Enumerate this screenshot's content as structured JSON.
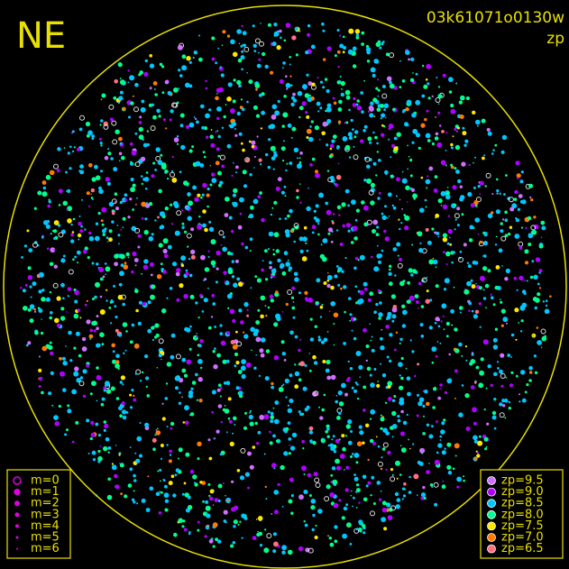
{
  "direction_label": "NE",
  "frame_id": "03k61071o0130w",
  "color_key_label": "zp",
  "border_color": "#e8e000",
  "magnitude_legend": {
    "color": "#e000e0",
    "items": [
      "m=0",
      "m=1",
      "m=2",
      "m=3",
      "m=4",
      "m=5",
      "m=6"
    ]
  },
  "zp_legend": {
    "items": [
      {
        "label": "zp=9.5",
        "color": "#d070ff"
      },
      {
        "label": "zp=9.0",
        "color": "#b000ff"
      },
      {
        "label": "zp=8.5",
        "color": "#00c8ff"
      },
      {
        "label": "zp=8.0",
        "color": "#00ff90"
      },
      {
        "label": "zp=7.5",
        "color": "#ffe800"
      },
      {
        "label": "zp=7.0",
        "color": "#ff7a00"
      },
      {
        "label": "zp=6.5",
        "color": "#ff7080"
      }
    ]
  }
}
